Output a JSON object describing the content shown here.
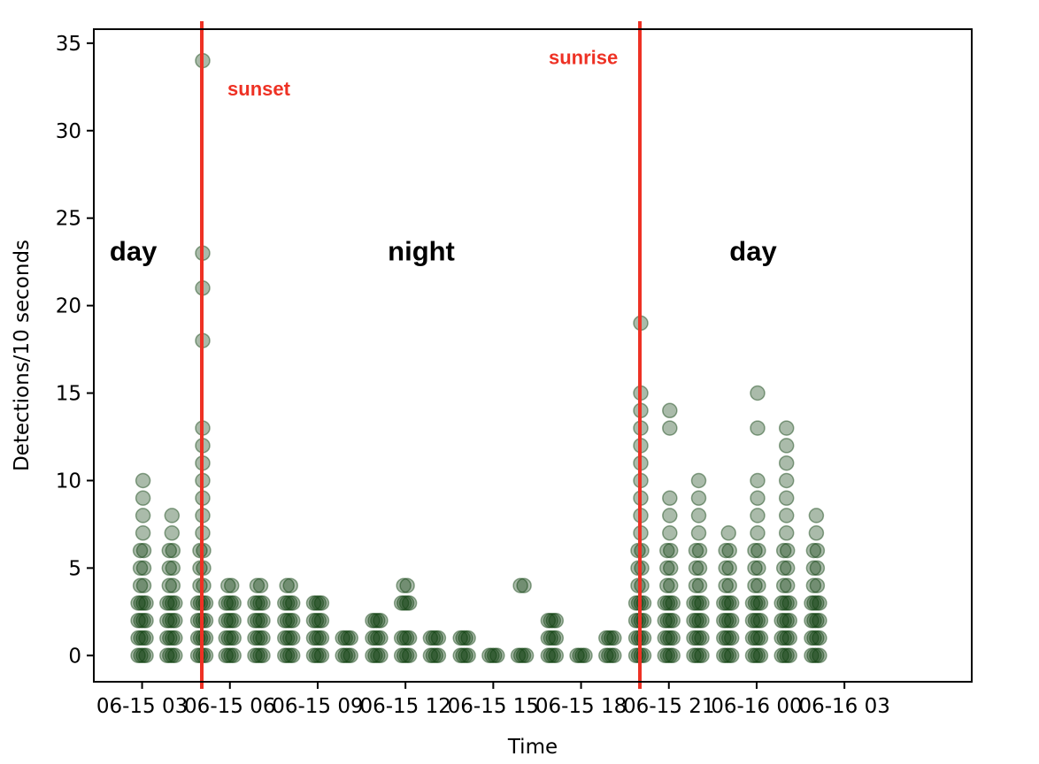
{
  "chart_data": {
    "type": "scatter",
    "xlabel": "Time",
    "ylabel": "Detections/10 seconds",
    "ylim": [
      -1.5,
      35.8
    ],
    "xlim": [
      -0.55,
      9.45
    ],
    "x_tick_values": [
      0,
      1,
      2,
      3,
      4,
      5,
      6,
      7,
      8
    ],
    "x_tick_labels": [
      "06-15 03",
      "06-15 06",
      "06-15 09",
      "06-15 12",
      "06-15 15",
      "06-15 18",
      "06-15 21",
      "06-16 00",
      "06-16 03"
    ],
    "y_ticks": [
      0,
      5,
      10,
      15,
      20,
      25,
      30,
      35
    ],
    "marker_color": "#0b3d0b",
    "marker_alpha": 0.35,
    "event_line_color": "#ee3124",
    "event_lines": [
      {
        "x": 0.68,
        "label": "sunset",
        "label_x": 1.33,
        "label_y": 32.3,
        "anchor": "middle"
      },
      {
        "x": 5.67,
        "label": "sunrise",
        "label_x": 5.42,
        "label_y": 34.1,
        "anchor": "end"
      }
    ],
    "period_labels": [
      {
        "text": "day",
        "x": -0.1,
        "y": 23
      },
      {
        "text": "night",
        "x": 3.18,
        "y": 23
      },
      {
        "text": "day",
        "x": 6.96,
        "y": 23
      }
    ],
    "clusters": [
      {
        "x": 0.0,
        "max": 10,
        "extra": []
      },
      {
        "x": 0.33,
        "max": 8,
        "extra": []
      },
      {
        "x": 0.68,
        "max": 13,
        "extra": [
          18,
          21,
          23,
          34
        ]
      },
      {
        "x": 1.0,
        "max": 4,
        "extra": []
      },
      {
        "x": 1.33,
        "max": 4,
        "extra": []
      },
      {
        "x": 1.67,
        "max": 4,
        "extra": []
      },
      {
        "x": 2.0,
        "max": 3,
        "extra": []
      },
      {
        "x": 2.33,
        "max": 1,
        "extra": []
      },
      {
        "x": 2.67,
        "max": 2,
        "extra": []
      },
      {
        "x": 3.0,
        "max": 1,
        "extra": [
          3,
          4
        ]
      },
      {
        "x": 3.33,
        "max": 1,
        "extra": []
      },
      {
        "x": 3.67,
        "max": 1,
        "extra": []
      },
      {
        "x": 4.0,
        "max": 0,
        "extra": []
      },
      {
        "x": 4.33,
        "max": 0,
        "extra": [
          4
        ]
      },
      {
        "x": 4.67,
        "max": 2,
        "extra": []
      },
      {
        "x": 5.0,
        "max": 0,
        "extra": []
      },
      {
        "x": 5.33,
        "max": 1,
        "extra": []
      },
      {
        "x": 5.67,
        "max": 15,
        "extra": [
          19
        ]
      },
      {
        "x": 6.0,
        "max": 9,
        "extra": [
          13,
          14
        ]
      },
      {
        "x": 6.33,
        "max": 10,
        "extra": []
      },
      {
        "x": 6.67,
        "max": 7,
        "extra": []
      },
      {
        "x": 7.0,
        "max": 10,
        "extra": [
          13,
          15
        ]
      },
      {
        "x": 7.33,
        "max": 13,
        "extra": []
      },
      {
        "x": 7.67,
        "max": 8,
        "extra": []
      }
    ]
  }
}
